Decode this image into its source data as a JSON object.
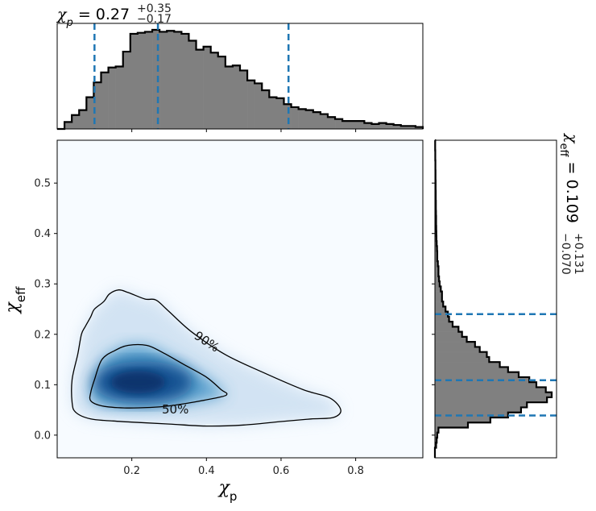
{
  "chart_data": [
    {
      "type": "heatmap",
      "panel": "joint",
      "xlabel": "χp",
      "ylabel": "χeff",
      "xlim": [
        0.0,
        0.98
      ],
      "ylim": [
        -0.045,
        0.585
      ],
      "xticks": [
        0.2,
        0.4,
        0.6,
        0.8
      ],
      "yticks": [
        0.0,
        0.1,
        0.2,
        0.3,
        0.4,
        0.5
      ],
      "density_peak": [
        0.23,
        0.105
      ],
      "colormap": "Blues",
      "contours": [
        {
          "label": "50%",
          "points": [
            [
              0.09,
              0.085
            ],
            [
              0.1,
              0.11
            ],
            [
              0.12,
              0.15
            ],
            [
              0.155,
              0.168
            ],
            [
              0.19,
              0.178
            ],
            [
              0.24,
              0.178
            ],
            [
              0.28,
              0.165
            ],
            [
              0.34,
              0.14
            ],
            [
              0.4,
              0.115
            ],
            [
              0.44,
              0.09
            ],
            [
              0.455,
              0.082
            ],
            [
              0.44,
              0.076
            ],
            [
              0.37,
              0.066
            ],
            [
              0.3,
              0.058
            ],
            [
              0.25,
              0.055
            ],
            [
              0.18,
              0.054
            ],
            [
              0.12,
              0.058
            ],
            [
              0.09,
              0.068
            ]
          ]
        },
        {
          "label": "90%",
          "points": [
            [
              0.04,
              0.065
            ],
            [
              0.04,
              0.11
            ],
            [
              0.055,
              0.16
            ],
            [
              0.065,
              0.2
            ],
            [
              0.075,
              0.215
            ],
            [
              0.09,
              0.235
            ],
            [
              0.1,
              0.25
            ],
            [
              0.125,
              0.265
            ],
            [
              0.14,
              0.28
            ],
            [
              0.165,
              0.288
            ],
            [
              0.19,
              0.283
            ],
            [
              0.235,
              0.27
            ],
            [
              0.265,
              0.268
            ],
            [
              0.3,
              0.245
            ],
            [
              0.36,
              0.205
            ],
            [
              0.45,
              0.16
            ],
            [
              0.55,
              0.125
            ],
            [
              0.66,
              0.09
            ],
            [
              0.73,
              0.074
            ],
            [
              0.76,
              0.05
            ],
            [
              0.74,
              0.035
            ],
            [
              0.68,
              0.032
            ],
            [
              0.6,
              0.027
            ],
            [
              0.5,
              0.02
            ],
            [
              0.4,
              0.018
            ],
            [
              0.3,
              0.022
            ],
            [
              0.22,
              0.025
            ],
            [
              0.15,
              0.028
            ],
            [
              0.09,
              0.032
            ],
            [
              0.05,
              0.045
            ]
          ]
        }
      ]
    },
    {
      "type": "bar",
      "panel": "top-marginal",
      "variable": "χp",
      "title_value": "0.27",
      "title_plus": "+0.35",
      "title_minus": "−0.17",
      "x_range": [
        0.0,
        0.98
      ],
      "bins": 50,
      "values": [
        0,
        0.07,
        0.14,
        0.19,
        0.32,
        0.47,
        0.57,
        0.62,
        0.63,
        0.78,
        0.96,
        0.97,
        0.98,
        1.0,
        0.98,
        0.99,
        0.98,
        0.96,
        0.89,
        0.8,
        0.83,
        0.77,
        0.73,
        0.63,
        0.64,
        0.59,
        0.49,
        0.46,
        0.39,
        0.32,
        0.31,
        0.25,
        0.22,
        0.2,
        0.19,
        0.17,
        0.15,
        0.12,
        0.1,
        0.08,
        0.08,
        0.08,
        0.06,
        0.05,
        0.06,
        0.05,
        0.04,
        0.03,
        0.03,
        0.02
      ],
      "quantile_lines": [
        0.1,
        0.27,
        0.62
      ]
    },
    {
      "type": "bar",
      "panel": "right-marginal",
      "orientation": "horizontal",
      "variable": "χeff",
      "title_value": "0.109",
      "title_plus": "+0.131",
      "title_minus": "−0.070",
      "y_range": [
        -0.045,
        0.585
      ],
      "bins": 63,
      "values": [
        0,
        0,
        0.01,
        0.015,
        0.02,
        0.03,
        0.28,
        0.47,
        0.62,
        0.73,
        0.78,
        0.95,
        0.99,
        0.94,
        0.86,
        0.8,
        0.71,
        0.62,
        0.55,
        0.46,
        0.44,
        0.38,
        0.34,
        0.27,
        0.23,
        0.2,
        0.15,
        0.12,
        0.11,
        0.09,
        0.07,
        0.06,
        0.06,
        0.05,
        0.04,
        0.035,
        0.03,
        0.03,
        0.025,
        0.02,
        0.02,
        0.018,
        0.015,
        0.013,
        0.012,
        0.011,
        0.01,
        0.01,
        0.009,
        0.008,
        0.008,
        0.007,
        0.007,
        0.006,
        0.006,
        0.005,
        0.005,
        0.004,
        0.004,
        0.003,
        0.003,
        0.002,
        0.002
      ],
      "quantile_lines": [
        0.039,
        0.109,
        0.24
      ]
    }
  ],
  "colors": {
    "hist_fill": "#808080",
    "hist_edge": "#000000",
    "quantile_line": "#1f77b4",
    "axes": "#000000"
  }
}
